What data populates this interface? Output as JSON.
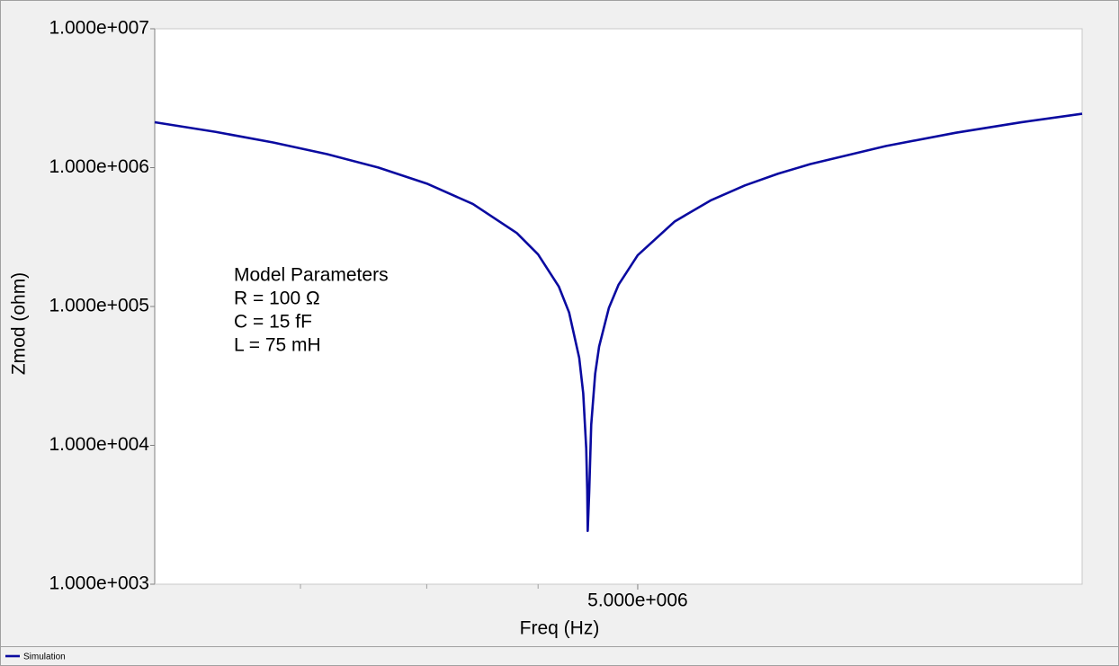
{
  "chart_data": {
    "type": "line",
    "x_label": "Freq (Hz)",
    "y_label": "Zmod (ohm)",
    "x_scale": "log",
    "y_scale": "log",
    "xlim": [
      3000000,
      8000000
    ],
    "ylim": [
      1000,
      10000000
    ],
    "xticks": [
      {
        "value": 5000000,
        "label": "5.000e+006"
      }
    ],
    "xminor_ticks": [
      3500000,
      4000000,
      4500000
    ],
    "yticks": [
      {
        "value": 1000,
        "label": "1.000e+003"
      },
      {
        "value": 10000,
        "label": "1.000e+004"
      },
      {
        "value": 100000,
        "label": "1.000e+005"
      },
      {
        "value": 1000000,
        "label": "1.000e+006"
      },
      {
        "value": 10000000,
        "label": "1.000e+007"
      }
    ],
    "x": [
      3000000,
      3200000,
      3400000,
      3600000,
      3800000,
      4000000,
      4200000,
      4400000,
      4500000,
      4600000,
      4650000,
      4700000,
      4720000,
      4735000,
      4740000,
      4742500,
      4750000,
      4760000,
      4780000,
      4800000,
      4850000,
      4900000,
      5000000,
      5200000,
      5400000,
      5600000,
      5800000,
      6000000,
      6500000,
      7000000,
      7500000,
      8000000
    ],
    "series": [
      {
        "name": "Simulation",
        "color": "#0a0aa0",
        "values": [
          2123050,
          1807750,
          1518460,
          1250850,
          1001470,
          767620,
          547050,
          337970,
          237260,
          138890,
          90520,
          42680,
          23690,
          9500,
          4780,
          2420,
          4640,
          14040,
          32800,
          51470,
          97820,
          143710,
          234140,
          410010,
          579830,
          744240,
          903830,
          1059060,
          1430710,
          1782920,
          2119590,
          2443630
        ]
      }
    ],
    "annotation": {
      "title": "Model Parameters",
      "lines": [
        "R = 100 Ω",
        "C = 15 fF",
        "L = 75 mH"
      ]
    },
    "legend": "bottom-left"
  }
}
